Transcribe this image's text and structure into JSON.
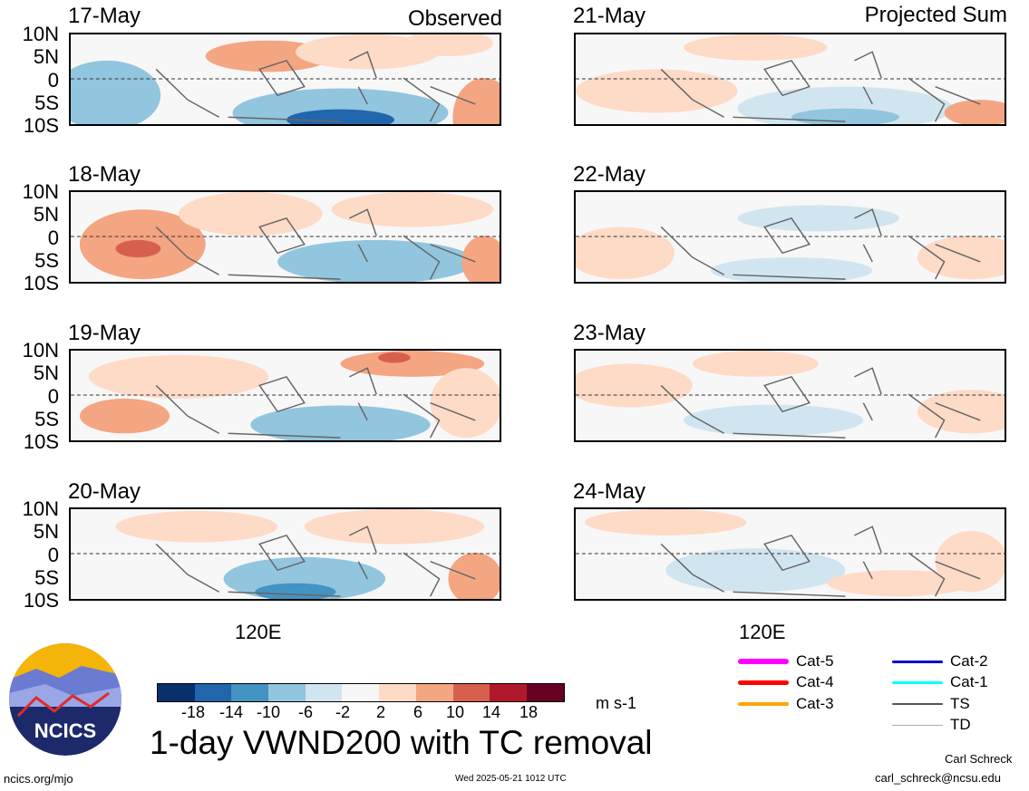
{
  "headers": {
    "left": "Observed",
    "right": "Projected Sum"
  },
  "lat_labels": [
    "10N",
    "5N",
    "0",
    "5S",
    "10S"
  ],
  "lon_label": "120E",
  "panels": {
    "left": [
      "17-May",
      "18-May",
      "19-May",
      "20-May"
    ],
    "right": [
      "21-May",
      "22-May",
      "23-May",
      "24-May"
    ]
  },
  "colorbar": {
    "colors": [
      "#08306b",
      "#2166ac",
      "#4393c3",
      "#92c5de",
      "#d1e5f0",
      "#f7f7f7",
      "#fddbc7",
      "#f4a582",
      "#d6604d",
      "#b2182b",
      "#67001f"
    ],
    "ticks": [
      "-18",
      "-14",
      "-10",
      "-6",
      "-2",
      "2",
      "6",
      "10",
      "14",
      "18"
    ],
    "unit": "m s-1"
  },
  "title": "1-day VWND200 with TC removal",
  "logo_text": "NCICS",
  "footer": {
    "url": "ncics.org/mjo",
    "timestamp": "Wed 2025-05-21 1012 UTC",
    "author": "Carl Schreck",
    "email": "carl_schreck@ncsu.edu"
  },
  "tc_legend": [
    {
      "label": "Cat-5",
      "color": "#ff00ff"
    },
    {
      "label": "Cat-4",
      "color": "#ff0000"
    },
    {
      "label": "Cat-3",
      "color": "#ffa500"
    },
    {
      "label": "Cat-2",
      "color": "#0000cc"
    },
    {
      "label": "Cat-1",
      "color": "#00ffff"
    },
    {
      "label": "TS",
      "color": "#555555"
    },
    {
      "label": "TD",
      "color": "#aaaaaa"
    }
  ]
}
